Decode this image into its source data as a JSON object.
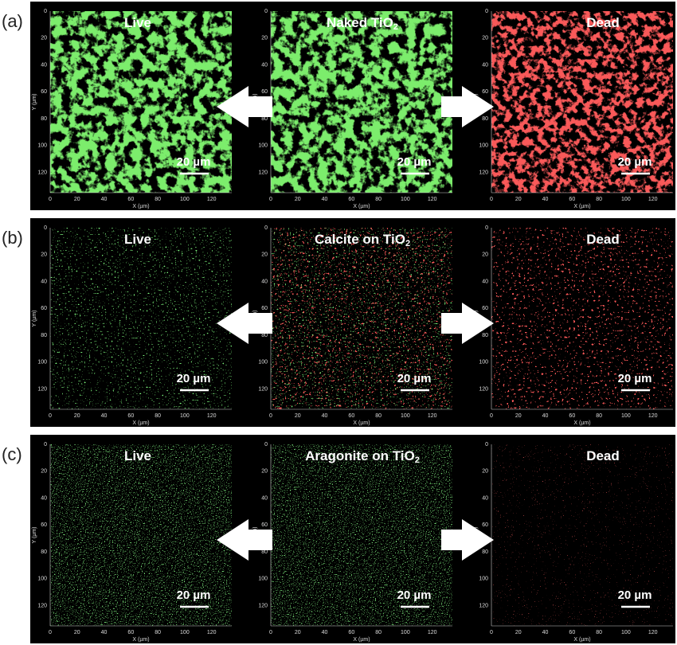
{
  "panels": [
    {
      "label": "(a)",
      "images": [
        {
          "title": "Live",
          "scale_bar": "20 µm"
        },
        {
          "title": "Naked TiO",
          "title_sub": "2",
          "scale_bar": "20 µm"
        },
        {
          "title": "Dead",
          "scale_bar": "20 µm"
        }
      ]
    },
    {
      "label": "(b)",
      "images": [
        {
          "title": "Live",
          "scale_bar": "20 µm"
        },
        {
          "title": "Calcite on TiO",
          "title_sub": "2",
          "scale_bar": "20 µm"
        },
        {
          "title": "Dead",
          "scale_bar": "20 µm"
        }
      ]
    },
    {
      "label": "(c)",
      "images": [
        {
          "title": "Live",
          "scale_bar": "20 µm"
        },
        {
          "title": "Aragonite on TiO",
          "title_sub": "2",
          "scale_bar": "20 µm"
        },
        {
          "title": "Dead",
          "scale_bar": "20 µm"
        }
      ]
    }
  ],
  "axis": {
    "ticks": [
      "0",
      "20",
      "40",
      "60",
      "80",
      "100",
      "120"
    ],
    "x_label": "X (µm)",
    "y_label": "Y (µm)"
  }
}
